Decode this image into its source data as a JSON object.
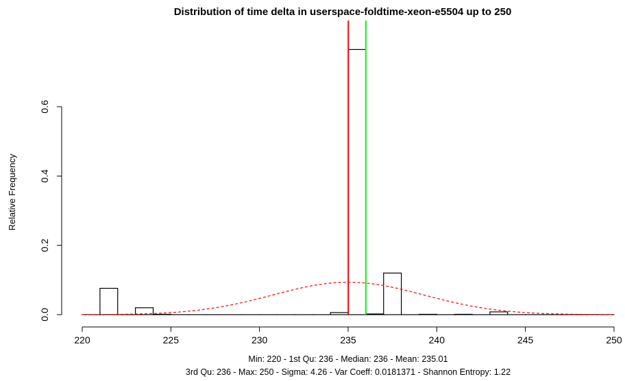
{
  "chart_data": {
    "type": "bar",
    "title": "Distribution of time delta in userspace-foldtime-xeon-e5504 up to 250",
    "xlabel": "",
    "ylabel": "Relative Frequency",
    "xlim": [
      220,
      250
    ],
    "ylim": [
      0,
      0.76
    ],
    "x_ticks": [
      "220",
      "225",
      "230",
      "235",
      "240",
      "245",
      "250"
    ],
    "y_ticks": [
      "0.0",
      "0.2",
      "0.4",
      "0.6"
    ],
    "bin_width": 1,
    "bins": [
      {
        "x0": 220,
        "value": 0.0
      },
      {
        "x0": 221,
        "value": 0.076
      },
      {
        "x0": 222,
        "value": 0.0
      },
      {
        "x0": 223,
        "value": 0.02
      },
      {
        "x0": 224,
        "value": 0.001
      },
      {
        "x0": 225,
        "value": 0.0
      },
      {
        "x0": 226,
        "value": 0.0
      },
      {
        "x0": 227,
        "value": 0.0
      },
      {
        "x0": 228,
        "value": 0.0
      },
      {
        "x0": 229,
        "value": 0.0
      },
      {
        "x0": 230,
        "value": 0.0
      },
      {
        "x0": 231,
        "value": 0.0
      },
      {
        "x0": 232,
        "value": 0.0
      },
      {
        "x0": 233,
        "value": 0.0
      },
      {
        "x0": 234,
        "value": 0.006
      },
      {
        "x0": 235,
        "value": 0.765
      },
      {
        "x0": 236,
        "value": 0.002
      },
      {
        "x0": 237,
        "value": 0.12
      },
      {
        "x0": 238,
        "value": 0.0
      },
      {
        "x0": 239,
        "value": 0.001
      },
      {
        "x0": 240,
        "value": 0.0
      },
      {
        "x0": 241,
        "value": 0.001
      },
      {
        "x0": 242,
        "value": 0.0
      },
      {
        "x0": 243,
        "value": 0.008
      },
      {
        "x0": 244,
        "value": 0.0
      },
      {
        "x0": 245,
        "value": 0.0
      },
      {
        "x0": 246,
        "value": 0.0
      },
      {
        "x0": 247,
        "value": 0.0
      },
      {
        "x0": 248,
        "value": 0.0
      },
      {
        "x0": 249,
        "value": 0.0
      }
    ],
    "normal_curve": {
      "mean": 235.01,
      "sigma": 4.26,
      "color": "#ff0000",
      "style": "dashed"
    },
    "vlines": [
      {
        "x": 235.01,
        "color": "#ff0000"
      },
      {
        "x": 236,
        "color": "#00ff00"
      }
    ],
    "grid": false
  },
  "stats": {
    "line1": "Min: 220 - 1st Qu: 236 - Median: 236 - Mean: 235.01",
    "line2": "3rd Qu: 236 - Max: 250 - Sigma: 4.26 - Var Coeff: 0.0181371 - Shannon Entropy: 1.22"
  }
}
